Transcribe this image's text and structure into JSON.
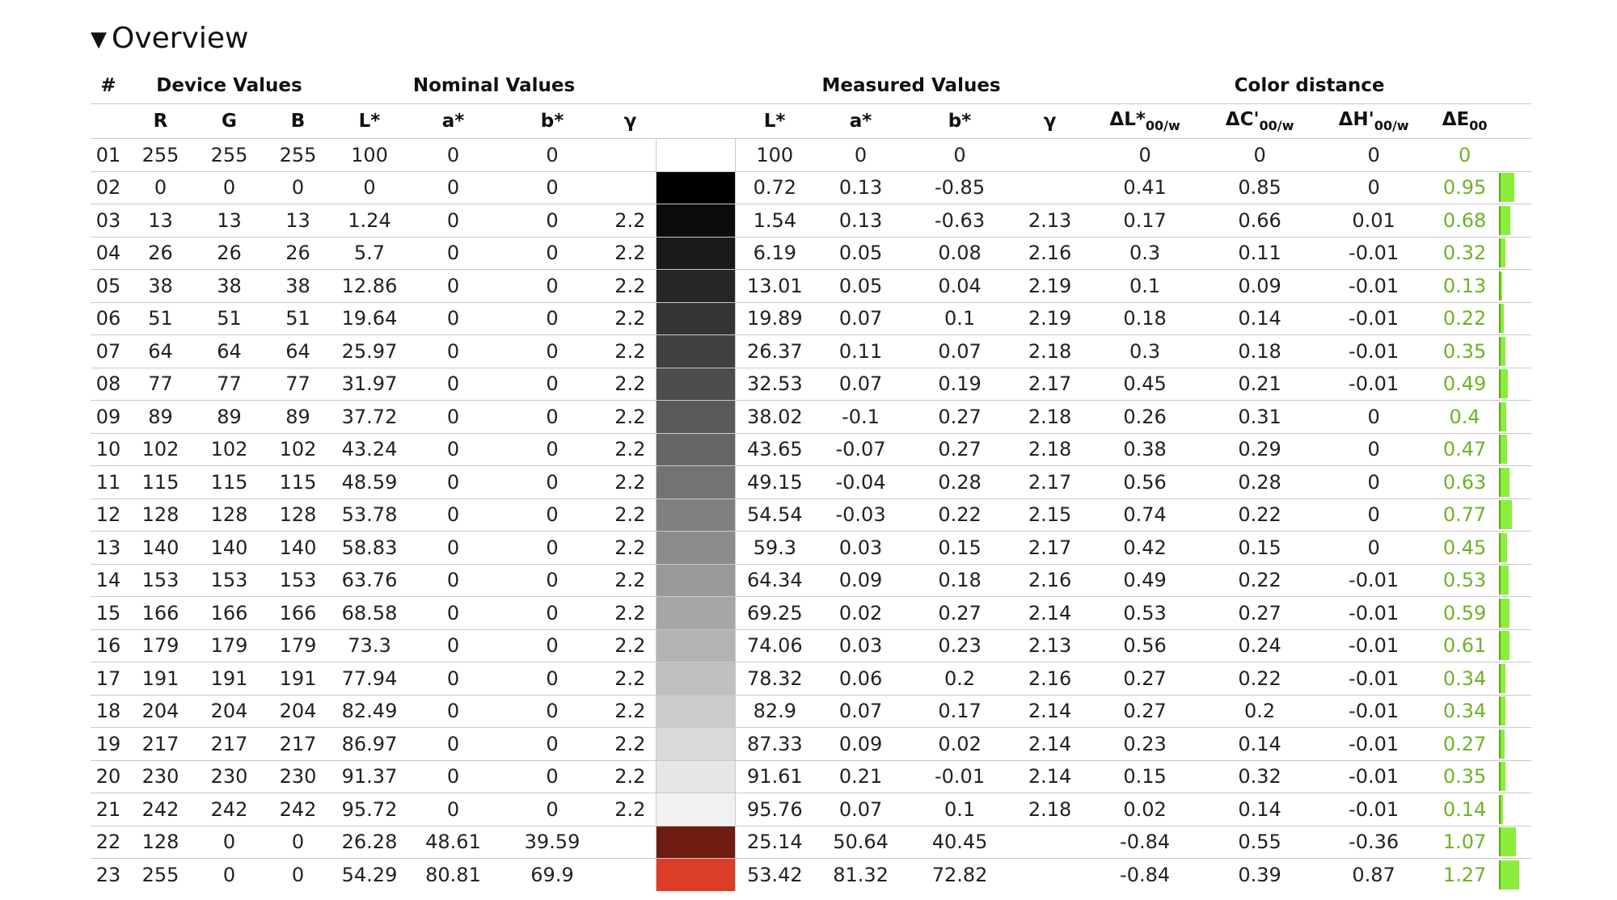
{
  "overview_title": "Overview",
  "groups": {
    "num": "#",
    "device": "Device Values",
    "nominal": "Nominal Values",
    "measured": "Measured Values",
    "distance": "Color distance"
  },
  "columns": {
    "device": [
      "R",
      "G",
      "B"
    ],
    "nominal": [
      "L*",
      "a*",
      "b*",
      "γ"
    ],
    "measured": [
      "L*",
      "a*",
      "b*",
      "γ"
    ],
    "dL_main": "ΔL*",
    "dL_sub": "00/w",
    "dC_main": "ΔC'",
    "dC_sub": "00/w",
    "dH_main": "ΔH'",
    "dH_sub": "00/w",
    "dE_main": "ΔE",
    "dE_sub": "00"
  },
  "rows": [
    {
      "n": "01",
      "r": "255",
      "g": "255",
      "b": "255",
      "nl": "100",
      "na": "0",
      "nb": "0",
      "ng": "",
      "swatch": "#ffffff",
      "ml": "100",
      "ma": "0",
      "mb": "0",
      "mg": "",
      "dl": "0",
      "dc": "0",
      "dh": "0",
      "de": "0"
    },
    {
      "n": "02",
      "r": "0",
      "g": "0",
      "b": "0",
      "nl": "0",
      "na": "0",
      "nb": "0",
      "ng": "",
      "swatch": "#000000",
      "ml": "0.72",
      "ma": "0.13",
      "mb": "-0.85",
      "mg": "",
      "dl": "0.41",
      "dc": "0.85",
      "dh": "0",
      "de": "0.95"
    },
    {
      "n": "03",
      "r": "13",
      "g": "13",
      "b": "13",
      "nl": "1.24",
      "na": "0",
      "nb": "0",
      "ng": "2.2",
      "swatch": "#0b0b0b",
      "ml": "1.54",
      "ma": "0.13",
      "mb": "-0.63",
      "mg": "2.13",
      "dl": "0.17",
      "dc": "0.66",
      "dh": "0.01",
      "de": "0.68"
    },
    {
      "n": "04",
      "r": "26",
      "g": "26",
      "b": "26",
      "nl": "5.7",
      "na": "0",
      "nb": "0",
      "ng": "2.2",
      "swatch": "#1a1a1a",
      "ml": "6.19",
      "ma": "0.05",
      "mb": "0.08",
      "mg": "2.16",
      "dl": "0.3",
      "dc": "0.11",
      "dh": "-0.01",
      "de": "0.32"
    },
    {
      "n": "05",
      "r": "38",
      "g": "38",
      "b": "38",
      "nl": "12.86",
      "na": "0",
      "nb": "0",
      "ng": "2.2",
      "swatch": "#262626",
      "ml": "13.01",
      "ma": "0.05",
      "mb": "0.04",
      "mg": "2.19",
      "dl": "0.1",
      "dc": "0.09",
      "dh": "-0.01",
      "de": "0.13"
    },
    {
      "n": "06",
      "r": "51",
      "g": "51",
      "b": "51",
      "nl": "19.64",
      "na": "0",
      "nb": "0",
      "ng": "2.2",
      "swatch": "#333333",
      "ml": "19.89",
      "ma": "0.07",
      "mb": "0.1",
      "mg": "2.19",
      "dl": "0.18",
      "dc": "0.14",
      "dh": "-0.01",
      "de": "0.22"
    },
    {
      "n": "07",
      "r": "64",
      "g": "64",
      "b": "64",
      "nl": "25.97",
      "na": "0",
      "nb": "0",
      "ng": "2.2",
      "swatch": "#404040",
      "ml": "26.37",
      "ma": "0.11",
      "mb": "0.07",
      "mg": "2.18",
      "dl": "0.3",
      "dc": "0.18",
      "dh": "-0.01",
      "de": "0.35"
    },
    {
      "n": "08",
      "r": "77",
      "g": "77",
      "b": "77",
      "nl": "31.97",
      "na": "0",
      "nb": "0",
      "ng": "2.2",
      "swatch": "#4d4d4d",
      "ml": "32.53",
      "ma": "0.07",
      "mb": "0.19",
      "mg": "2.17",
      "dl": "0.45",
      "dc": "0.21",
      "dh": "-0.01",
      "de": "0.49"
    },
    {
      "n": "09",
      "r": "89",
      "g": "89",
      "b": "89",
      "nl": "37.72",
      "na": "0",
      "nb": "0",
      "ng": "2.2",
      "swatch": "#595959",
      "ml": "38.02",
      "ma": "-0.1",
      "mb": "0.27",
      "mg": "2.18",
      "dl": "0.26",
      "dc": "0.31",
      "dh": "0",
      "de": "0.4"
    },
    {
      "n": "10",
      "r": "102",
      "g": "102",
      "b": "102",
      "nl": "43.24",
      "na": "0",
      "nb": "0",
      "ng": "2.2",
      "swatch": "#666666",
      "ml": "43.65",
      "ma": "-0.07",
      "mb": "0.27",
      "mg": "2.18",
      "dl": "0.38",
      "dc": "0.29",
      "dh": "0",
      "de": "0.47"
    },
    {
      "n": "11",
      "r": "115",
      "g": "115",
      "b": "115",
      "nl": "48.59",
      "na": "0",
      "nb": "0",
      "ng": "2.2",
      "swatch": "#737373",
      "ml": "49.15",
      "ma": "-0.04",
      "mb": "0.28",
      "mg": "2.17",
      "dl": "0.56",
      "dc": "0.28",
      "dh": "0",
      "de": "0.63"
    },
    {
      "n": "12",
      "r": "128",
      "g": "128",
      "b": "128",
      "nl": "53.78",
      "na": "0",
      "nb": "0",
      "ng": "2.2",
      "swatch": "#808080",
      "ml": "54.54",
      "ma": "-0.03",
      "mb": "0.22",
      "mg": "2.15",
      "dl": "0.74",
      "dc": "0.22",
      "dh": "0",
      "de": "0.77"
    },
    {
      "n": "13",
      "r": "140",
      "g": "140",
      "b": "140",
      "nl": "58.83",
      "na": "0",
      "nb": "0",
      "ng": "2.2",
      "swatch": "#8c8c8c",
      "ml": "59.3",
      "ma": "0.03",
      "mb": "0.15",
      "mg": "2.17",
      "dl": "0.42",
      "dc": "0.15",
      "dh": "0",
      "de": "0.45"
    },
    {
      "n": "14",
      "r": "153",
      "g": "153",
      "b": "153",
      "nl": "63.76",
      "na": "0",
      "nb": "0",
      "ng": "2.2",
      "swatch": "#999999",
      "ml": "64.34",
      "ma": "0.09",
      "mb": "0.18",
      "mg": "2.16",
      "dl": "0.49",
      "dc": "0.22",
      "dh": "-0.01",
      "de": "0.53"
    },
    {
      "n": "15",
      "r": "166",
      "g": "166",
      "b": "166",
      "nl": "68.58",
      "na": "0",
      "nb": "0",
      "ng": "2.2",
      "swatch": "#a6a6a6",
      "ml": "69.25",
      "ma": "0.02",
      "mb": "0.27",
      "mg": "2.14",
      "dl": "0.53",
      "dc": "0.27",
      "dh": "-0.01",
      "de": "0.59"
    },
    {
      "n": "16",
      "r": "179",
      "g": "179",
      "b": "179",
      "nl": "73.3",
      "na": "0",
      "nb": "0",
      "ng": "2.2",
      "swatch": "#b3b3b3",
      "ml": "74.06",
      "ma": "0.03",
      "mb": "0.23",
      "mg": "2.13",
      "dl": "0.56",
      "dc": "0.24",
      "dh": "-0.01",
      "de": "0.61"
    },
    {
      "n": "17",
      "r": "191",
      "g": "191",
      "b": "191",
      "nl": "77.94",
      "na": "0",
      "nb": "0",
      "ng": "2.2",
      "swatch": "#bfbfbf",
      "ml": "78.32",
      "ma": "0.06",
      "mb": "0.2",
      "mg": "2.16",
      "dl": "0.27",
      "dc": "0.22",
      "dh": "-0.01",
      "de": "0.34"
    },
    {
      "n": "18",
      "r": "204",
      "g": "204",
      "b": "204",
      "nl": "82.49",
      "na": "0",
      "nb": "0",
      "ng": "2.2",
      "swatch": "#cccccc",
      "ml": "82.9",
      "ma": "0.07",
      "mb": "0.17",
      "mg": "2.14",
      "dl": "0.27",
      "dc": "0.2",
      "dh": "-0.01",
      "de": "0.34"
    },
    {
      "n": "19",
      "r": "217",
      "g": "217",
      "b": "217",
      "nl": "86.97",
      "na": "0",
      "nb": "0",
      "ng": "2.2",
      "swatch": "#d9d9d9",
      "ml": "87.33",
      "ma": "0.09",
      "mb": "0.02",
      "mg": "2.14",
      "dl": "0.23",
      "dc": "0.14",
      "dh": "-0.01",
      "de": "0.27"
    },
    {
      "n": "20",
      "r": "230",
      "g": "230",
      "b": "230",
      "nl": "91.37",
      "na": "0",
      "nb": "0",
      "ng": "2.2",
      "swatch": "#e6e6e6",
      "ml": "91.61",
      "ma": "0.21",
      "mb": "-0.01",
      "mg": "2.14",
      "dl": "0.15",
      "dc": "0.32",
      "dh": "-0.01",
      "de": "0.35"
    },
    {
      "n": "21",
      "r": "242",
      "g": "242",
      "b": "242",
      "nl": "95.72",
      "na": "0",
      "nb": "0",
      "ng": "2.2",
      "swatch": "#f2f2f2",
      "ml": "95.76",
      "ma": "0.07",
      "mb": "0.1",
      "mg": "2.18",
      "dl": "0.02",
      "dc": "0.14",
      "dh": "-0.01",
      "de": "0.14"
    },
    {
      "n": "22",
      "r": "128",
      "g": "0",
      "b": "0",
      "nl": "26.28",
      "na": "48.61",
      "nb": "39.59",
      "ng": "",
      "swatch": "#6e1c12",
      "ml": "25.14",
      "ma": "50.64",
      "mb": "40.45",
      "mg": "",
      "dl": "-0.84",
      "dc": "0.55",
      "dh": "-0.36",
      "de": "1.07"
    },
    {
      "n": "23",
      "r": "255",
      "g": "0",
      "b": "0",
      "nl": "54.29",
      "na": "80.81",
      "nb": "69.9",
      "ng": "",
      "swatch": "#dc3d27",
      "ml": "53.42",
      "ma": "81.32",
      "mb": "72.82",
      "mg": "",
      "dl": "-0.84",
      "dc": "0.39",
      "dh": "0.87",
      "de": "1.27"
    }
  ],
  "colors": {
    "de_text": "#6fb226",
    "bar_fill": "#8cee3c",
    "divider": "#c9c9c9"
  }
}
